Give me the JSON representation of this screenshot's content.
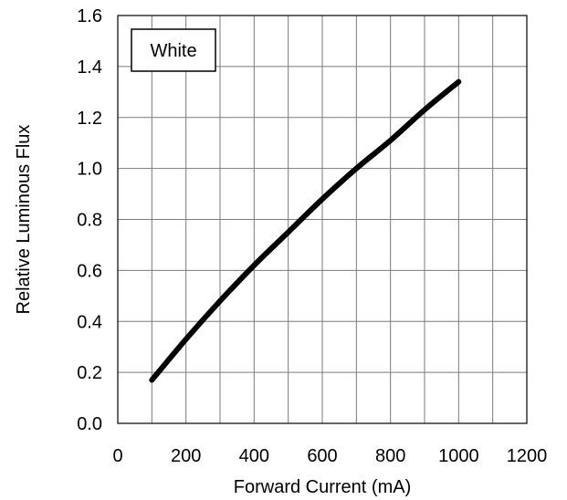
{
  "chart_data": {
    "type": "line",
    "title": "",
    "xlabel": "Forward Current (mA)",
    "ylabel": "Relative Luminous Flux",
    "xlim": [
      0,
      1200
    ],
    "ylim": [
      0,
      1.6
    ],
    "x_ticks": [
      0,
      200,
      400,
      600,
      800,
      1000,
      1200
    ],
    "x_tick_labels": [
      "0",
      "200",
      "400",
      "600",
      "800",
      "1000",
      "1200"
    ],
    "y_ticks": [
      0,
      0.2,
      0.4,
      0.6,
      0.8,
      1.0,
      1.2,
      1.4,
      1.6
    ],
    "y_tick_labels": [
      "0.0",
      "0.2",
      "0.4",
      "0.6",
      "0.8",
      "1.0",
      "1.2",
      "1.4",
      "1.6"
    ],
    "x_minor_step": 100,
    "grid": true,
    "legend": {
      "label": "White",
      "position": "top-left"
    },
    "series": [
      {
        "color": "#000000",
        "x": [
          100,
          200,
          300,
          400,
          500,
          600,
          700,
          800,
          900,
          1000
        ],
        "y": [
          0.17,
          0.33,
          0.48,
          0.62,
          0.75,
          0.88,
          1.0,
          1.11,
          1.23,
          1.34
        ]
      }
    ]
  }
}
